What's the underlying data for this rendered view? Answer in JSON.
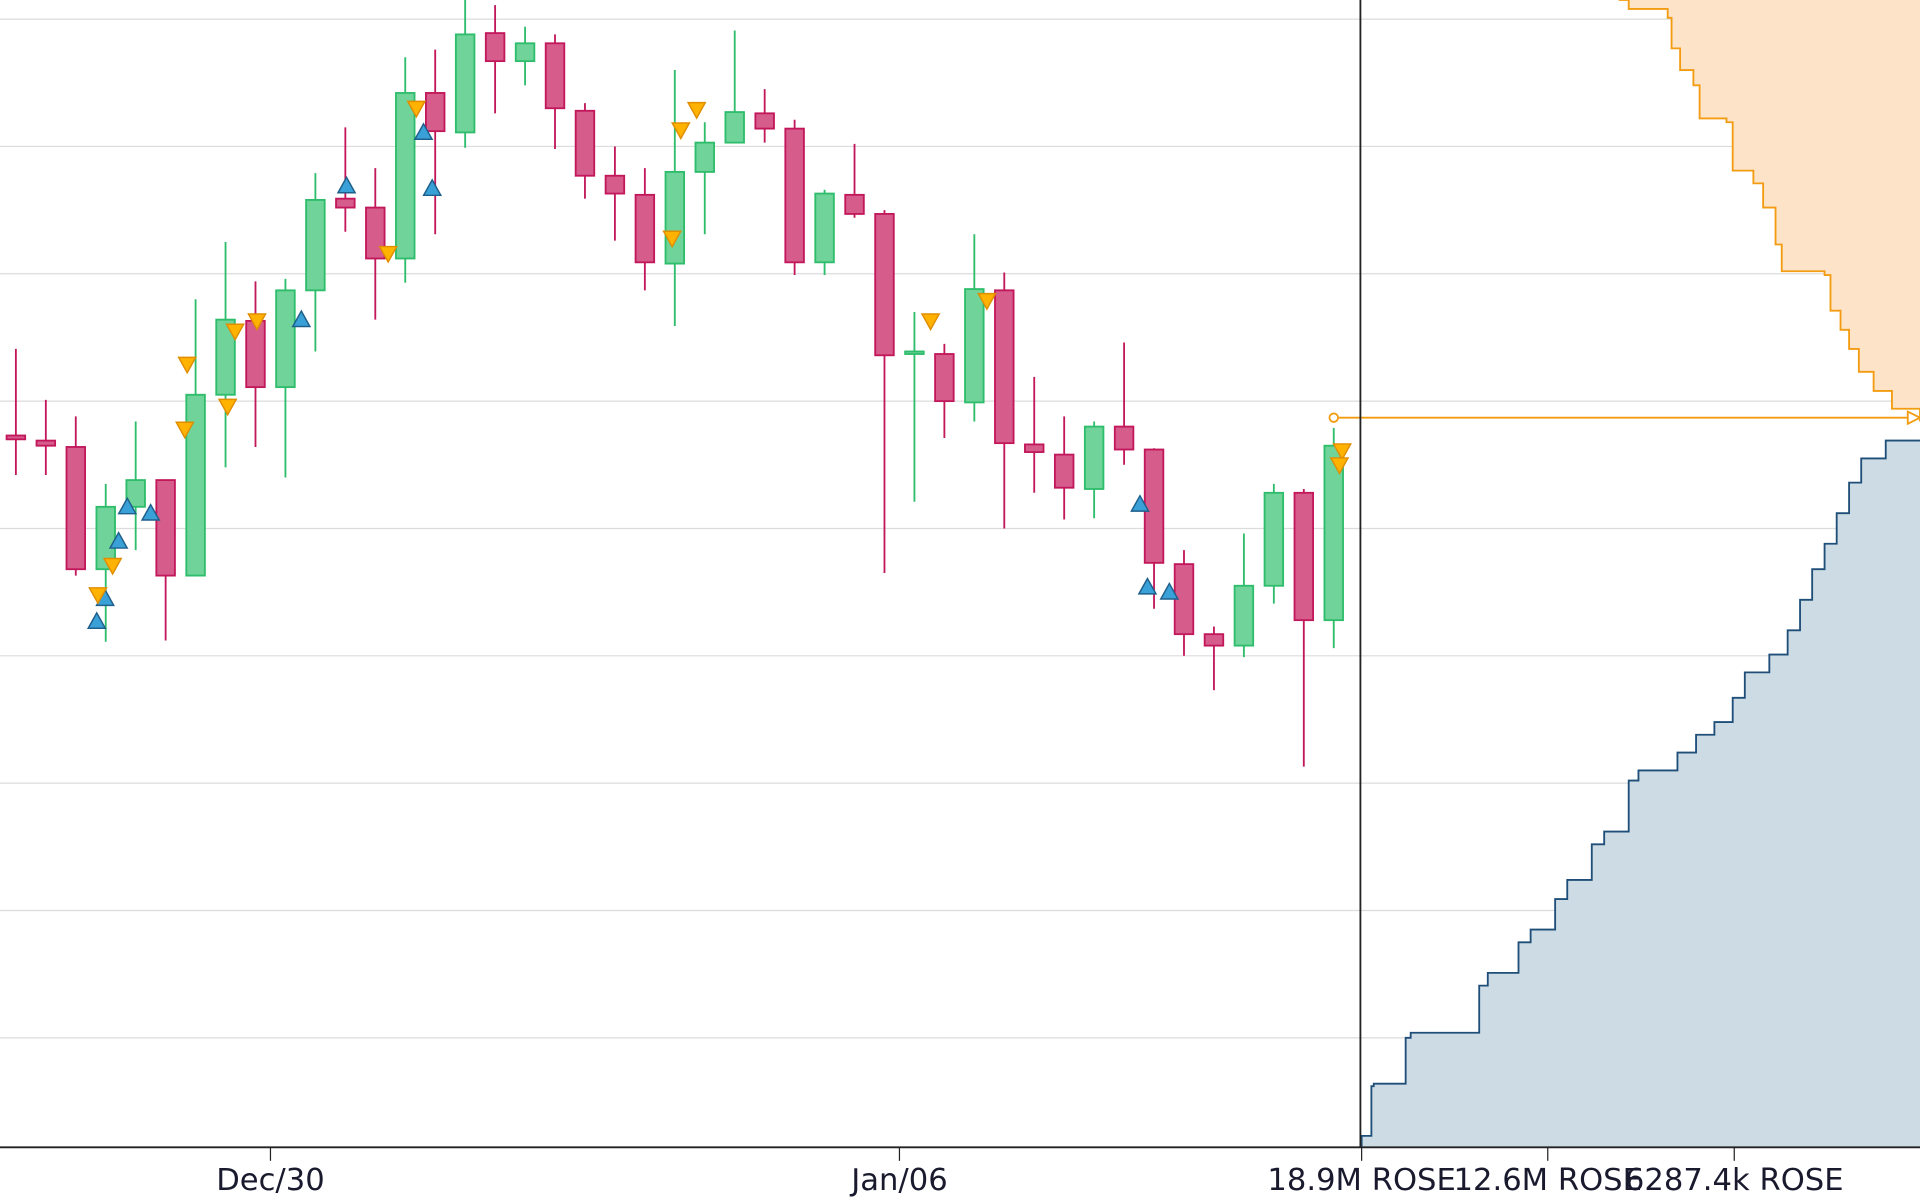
{
  "chart_data": [
    {
      "type": "candlestick",
      "x": [
        0,
        1,
        2,
        3,
        4,
        5,
        6,
        7,
        8,
        9,
        10,
        11,
        12,
        13,
        14,
        15,
        16,
        17,
        18,
        19,
        20,
        21,
        22,
        23,
        24,
        25,
        26,
        27,
        28,
        29,
        30,
        31,
        32,
        33,
        34,
        35,
        36,
        37,
        38,
        39,
        40,
        41,
        42,
        43,
        44
      ],
      "open": [
        5.73,
        5.69,
        5.64,
        4.68,
        5.17,
        5.38,
        4.63,
        6.05,
        6.63,
        6.11,
        6.87,
        7.59,
        7.52,
        7.12,
        8.42,
        8.11,
        8.89,
        8.67,
        8.81,
        8.28,
        7.77,
        7.62,
        7.08,
        7.8,
        8.03,
        8.26,
        8.14,
        7.09,
        7.62,
        7.47,
        6.37,
        6.37,
        5.99,
        6.87,
        5.66,
        5.58,
        5.31,
        5.8,
        5.62,
        4.72,
        4.17,
        4.08,
        4.55,
        5.28,
        4.28
      ],
      "high": [
        6.41,
        6.01,
        5.88,
        5.35,
        5.84,
        5.38,
        6.8,
        7.25,
        6.94,
        6.96,
        7.79,
        8.15,
        7.83,
        8.7,
        8.76,
        9.15,
        9.11,
        8.94,
        8.88,
        8.34,
        8.0,
        7.83,
        8.6,
        8.19,
        8.91,
        8.45,
        8.21,
        7.66,
        8.02,
        7.5,
        6.7,
        6.45,
        7.31,
        7.01,
        6.19,
        5.88,
        5.84,
        6.46,
        5.63,
        4.83,
        4.23,
        4.96,
        5.35,
        5.31,
        5.79
      ],
      "low": [
        5.42,
        5.42,
        4.63,
        4.11,
        4.83,
        4.12,
        4.63,
        5.48,
        5.64,
        5.4,
        6.39,
        7.33,
        6.64,
        6.93,
        7.31,
        7.99,
        8.26,
        8.48,
        7.98,
        7.59,
        7.26,
        6.87,
        6.59,
        7.31,
        8.03,
        8.03,
        6.99,
        6.99,
        7.44,
        4.65,
        5.21,
        5.71,
        5.84,
        5.0,
        5.28,
        5.07,
        5.08,
        5.5,
        4.37,
        4.0,
        3.73,
        3.99,
        4.41,
        3.13,
        4.06
      ],
      "close": [
        5.7,
        5.65,
        4.68,
        5.17,
        5.38,
        4.63,
        6.05,
        6.64,
        6.11,
        6.87,
        7.58,
        7.52,
        7.12,
        8.42,
        8.12,
        8.88,
        8.67,
        8.81,
        8.3,
        7.77,
        7.63,
        7.09,
        7.8,
        8.03,
        8.27,
        8.14,
        7.09,
        7.63,
        7.47,
        6.36,
        6.39,
        6.0,
        6.88,
        5.67,
        5.6,
        5.32,
        5.8,
        5.62,
        4.73,
        4.17,
        4.08,
        4.55,
        5.28,
        4.28,
        5.65
      ],
      "up_color": "#2ebd6b",
      "up_fill": "#6fd39a",
      "down_color": "#c2185b",
      "down_fill": "#d65c8c",
      "xlim": [
        -0.53,
        44.89
      ],
      "xticks": [
        {
          "value": 8.5,
          "label": "Dec/30"
        },
        {
          "value": 29.5,
          "label": "Jan/06"
        }
      ],
      "ylim": [
        0.14,
        9.15
      ],
      "ygrid": [
        1,
        2,
        3,
        4,
        5,
        6,
        7,
        8,
        9
      ],
      "buys": {
        "color": "#3aa0d8",
        "x": [
          2.7,
          2.98,
          3.43,
          3.72,
          4.5,
          9.53,
          11.04,
          13.61,
          13.9,
          37.53,
          37.78,
          38.51
        ],
        "y": [
          4.27,
          4.45,
          4.9,
          5.17,
          5.12,
          6.64,
          7.69,
          8.11,
          7.67,
          5.19,
          4.54,
          4.5
        ]
      },
      "sells": {
        "color": "#ffb300",
        "x": [
          2.74,
          3.23,
          5.72,
          5.64,
          7.07,
          7.32,
          8.05,
          12.43,
          13.37,
          21.91,
          22.2,
          22.73,
          30.54,
          32.42,
          44.28,
          44.19
        ],
        "y": [
          4.48,
          4.71,
          6.29,
          5.78,
          5.96,
          6.55,
          6.63,
          7.16,
          8.3,
          7.28,
          8.13,
          8.29,
          6.63,
          6.79,
          5.61,
          5.5
        ]
      },
      "last_price": 5.87,
      "last_price_color": "#f39c12"
    },
    {
      "type": "depth",
      "xlim": [
        18900000,
        0
      ],
      "xticks": [
        {
          "value": 18900000,
          "label": "18.9M ROSE"
        },
        {
          "value": 12600000,
          "label": "12.6M ROSE"
        },
        {
          "value": 6287400,
          "label": "6287.4k ROSE"
        }
      ],
      "ylim": [
        0.14,
        9.15
      ],
      "asks": {
        "color": "#f39c12",
        "fill": "#fde3c8",
        "volume": [
          10200000,
          9860000,
          8540000,
          8410000,
          8120000,
          7670000,
          7460000,
          6550000,
          6340000,
          5640000,
          5310000,
          4890000,
          4680000,
          3230000,
          3030000,
          2690000,
          2400000,
          2070000,
          1570000,
          950000,
          0
        ],
        "price": [
          9.15,
          9.08,
          9.01,
          8.77,
          8.6,
          8.48,
          8.22,
          8.19,
          7.81,
          7.71,
          7.52,
          7.23,
          7.02,
          6.99,
          6.71,
          6.56,
          6.41,
          6.23,
          6.08,
          5.94,
          5.84
        ]
      },
      "bids": {
        "color": "#1f4e79",
        "fill": "#cddce4",
        "volume": [
          0,
          1160000,
          1990000,
          2400000,
          2820000,
          3230000,
          3650000,
          4060000,
          4480000,
          5100000,
          5930000,
          6340000,
          6960000,
          7580000,
          8210000,
          9530000,
          9860000,
          10690000,
          11110000,
          11940000,
          12350000,
          13180000,
          13590000,
          14630000,
          14920000,
          17240000,
          17410000,
          18490000,
          18570000,
          18900000
        ],
        "price": [
          5.69,
          5.55,
          5.36,
          5.12,
          4.88,
          4.68,
          4.44,
          4.2,
          4.01,
          3.87,
          3.67,
          3.48,
          3.38,
          3.24,
          3.1,
          3.02,
          2.62,
          2.52,
          2.24,
          2.09,
          1.85,
          1.75,
          1.51,
          1.41,
          1.04,
          1.0,
          0.64,
          0.62,
          0.23,
          0.14
        ]
      }
    }
  ]
}
